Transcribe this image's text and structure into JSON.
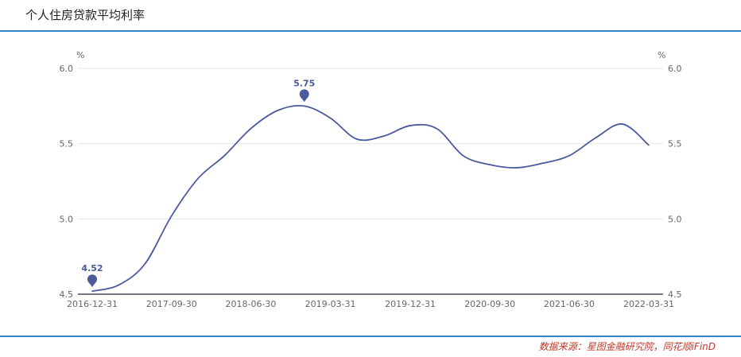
{
  "page": {
    "title": "个人住房贷款平均利率",
    "source": "数据来源：星图金融研究院，同花顺iFinD",
    "line_color": "#4a5a9c"
  },
  "chart_data": {
    "type": "line",
    "title": "个人住房贷款平均利率",
    "y_unit_left": "%",
    "y_unit_right": "%",
    "ylim": [
      4.5,
      6.0
    ],
    "y_ticks": [
      "6.0",
      "5.5",
      "5.0",
      "4.5"
    ],
    "x_tick_labels": [
      "2016-12-31",
      "2017-09-30",
      "2018-06-30",
      "2019-03-31",
      "2019-12-31",
      "2020-09-30",
      "2021-06-30",
      "2022-03-31"
    ],
    "grid": "horizontal",
    "series": [
      {
        "x": [
          "2016-12-31",
          "2017-03-31",
          "2017-06-30",
          "2017-09-30",
          "2017-12-31",
          "2018-03-31",
          "2018-06-30",
          "2018-09-30",
          "2018-12-31",
          "2019-03-31",
          "2019-06-30",
          "2019-09-30",
          "2019-12-31",
          "2020-03-31",
          "2020-06-30",
          "2020-09-30",
          "2020-12-31",
          "2021-03-31",
          "2021-06-30",
          "2021-09-30",
          "2021-12-31",
          "2022-03-31"
        ],
        "values": [
          4.52,
          4.56,
          4.7,
          5.02,
          5.27,
          5.42,
          5.6,
          5.72,
          5.75,
          5.67,
          5.53,
          5.55,
          5.62,
          5.6,
          5.42,
          5.36,
          5.34,
          5.37,
          5.42,
          5.54,
          5.63,
          5.49
        ]
      }
    ],
    "annotations": [
      {
        "x": "2016-12-31",
        "value": 4.52,
        "label": "4.52"
      },
      {
        "x": "2018-12-31",
        "value": 5.75,
        "label": "5.75"
      }
    ]
  }
}
